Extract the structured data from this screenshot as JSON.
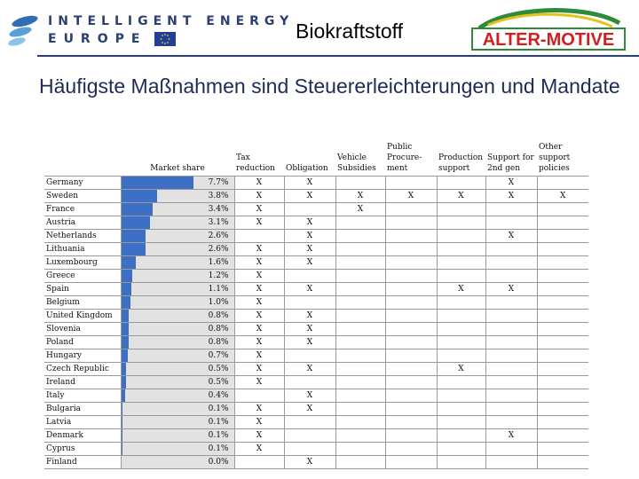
{
  "header": {
    "logo_line1": "INTELLIGENT ENERGY",
    "logo_line2": "EUROPE",
    "title": "Biokraftstoff",
    "alter_logo_text": "ALTER-MOTIVE",
    "colors": {
      "brand_blue": "#2b3f73",
      "bar_blue": "#3d6fc4",
      "alter_red": "#d11f1f",
      "alter_green": "#2f8a3a"
    }
  },
  "subtitle": "Häufigste Maßnahmen sind Steuererleichterungen und Mandate",
  "table": {
    "columns": [
      "Market share",
      "Tax reduction",
      "Obligation",
      "Vehicle Subsidies",
      "Public Procure-ment",
      "Production support",
      "Support for 2nd gen",
      "Other support policies"
    ],
    "rows": [
      {
        "country": "Germany",
        "share": "7.7%",
        "share_value": 7.7,
        "marks": [
          "X",
          "X",
          "",
          "",
          "",
          "X",
          ""
        ]
      },
      {
        "country": "Sweden",
        "share": "3.8%",
        "share_value": 3.8,
        "marks": [
          "X",
          "X",
          "X",
          "X",
          "X",
          "X",
          "X"
        ]
      },
      {
        "country": "France",
        "share": "3.4%",
        "share_value": 3.4,
        "marks": [
          "X",
          "",
          "X",
          "",
          "",
          "",
          ""
        ]
      },
      {
        "country": "Austria",
        "share": "3.1%",
        "share_value": 3.1,
        "marks": [
          "X",
          "X",
          "",
          "",
          "",
          "",
          ""
        ]
      },
      {
        "country": "Netherlands",
        "share": "2.6%",
        "share_value": 2.6,
        "marks": [
          "",
          "X",
          "",
          "",
          "",
          "X",
          ""
        ]
      },
      {
        "country": "Lithuania",
        "share": "2.6%",
        "share_value": 2.6,
        "marks": [
          "X",
          "X",
          "",
          "",
          "",
          "",
          ""
        ]
      },
      {
        "country": "Luxembourg",
        "share": "1.6%",
        "share_value": 1.6,
        "marks": [
          "X",
          "X",
          "",
          "",
          "",
          "",
          ""
        ]
      },
      {
        "country": "Greece",
        "share": "1.2%",
        "share_value": 1.2,
        "marks": [
          "X",
          "",
          "",
          "",
          "",
          "",
          ""
        ]
      },
      {
        "country": "Spain",
        "share": "1.1%",
        "share_value": 1.1,
        "marks": [
          "X",
          "X",
          "",
          "",
          "X",
          "X",
          ""
        ]
      },
      {
        "country": "Belgium",
        "share": "1.0%",
        "share_value": 1.0,
        "marks": [
          "X",
          "",
          "",
          "",
          "",
          "",
          ""
        ]
      },
      {
        "country": "United Kingdom",
        "share": "0.8%",
        "share_value": 0.8,
        "marks": [
          "X",
          "X",
          "",
          "",
          "",
          "",
          ""
        ]
      },
      {
        "country": "Slovenia",
        "share": "0.8%",
        "share_value": 0.8,
        "marks": [
          "X",
          "X",
          "",
          "",
          "",
          "",
          ""
        ]
      },
      {
        "country": "Poland",
        "share": "0.8%",
        "share_value": 0.8,
        "marks": [
          "X",
          "X",
          "",
          "",
          "",
          "",
          ""
        ]
      },
      {
        "country": "Hungary",
        "share": "0.7%",
        "share_value": 0.7,
        "marks": [
          "X",
          "",
          "",
          "",
          "",
          "",
          ""
        ]
      },
      {
        "country": "Czech Republic",
        "share": "0.5%",
        "share_value": 0.5,
        "marks": [
          "X",
          "X",
          "",
          "",
          "X",
          "",
          ""
        ]
      },
      {
        "country": "Ireland",
        "share": "0.5%",
        "share_value": 0.5,
        "marks": [
          "X",
          "",
          "",
          "",
          "",
          "",
          ""
        ]
      },
      {
        "country": "Italy",
        "share": "0.4%",
        "share_value": 0.4,
        "marks": [
          "",
          "X",
          "",
          "",
          "",
          "",
          ""
        ]
      },
      {
        "country": "Bulgaria",
        "share": "0.1%",
        "share_value": 0.1,
        "marks": [
          "X",
          "X",
          "",
          "",
          "",
          "",
          ""
        ]
      },
      {
        "country": "Latvia",
        "share": "0.1%",
        "share_value": 0.1,
        "marks": [
          "X",
          "",
          "",
          "",
          "",
          "",
          ""
        ]
      },
      {
        "country": "Denmark",
        "share": "0.1%",
        "share_value": 0.1,
        "marks": [
          "X",
          "",
          "",
          "",
          "",
          "X",
          ""
        ]
      },
      {
        "country": "Cyprus",
        "share": "0.1%",
        "share_value": 0.1,
        "marks": [
          "X",
          "",
          "",
          "",
          "",
          "",
          ""
        ]
      },
      {
        "country": "Finland",
        "share": "0.0%",
        "share_value": 0.0,
        "marks": [
          "",
          "X",
          "",
          "",
          "",
          "",
          ""
        ]
      }
    ]
  }
}
